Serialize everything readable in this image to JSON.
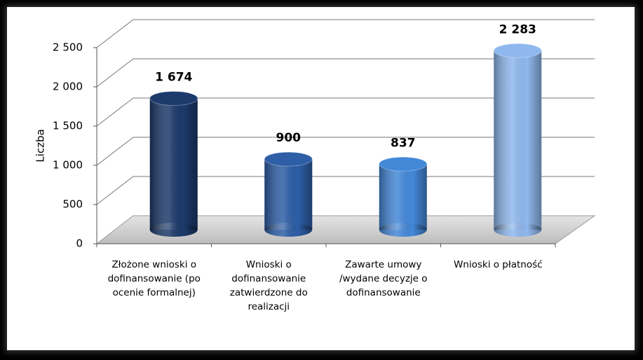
{
  "chart_data": {
    "type": "bar",
    "y_label": "Liczba",
    "categories": [
      "Złożone wnioski o dofinansowanie (po ocenie formalnej)",
      "Wnioski o dofinansowanie zatwierdzone do realizacji",
      "Zawarte umowy /wydane decyzje o dofinansowanie",
      "Wnioski o płatność"
    ],
    "values": [
      1674,
      900,
      837,
      2283
    ],
    "value_labels": [
      "1 674",
      "900",
      "837",
      "2 283"
    ],
    "colors": [
      "#1c3a6b",
      "#2d5ea6",
      "#4488d8",
      "#8fb8ee"
    ],
    "ylim": [
      0,
      2500
    ],
    "yticks": [
      0,
      500,
      {
        "value": 1000,
        "label": "1 000"
      },
      {
        "value": 1500,
        "label": "1 500"
      },
      {
        "value": 2000,
        "label": "2 000"
      },
      {
        "value": 2500,
        "label": "2 500"
      }
    ],
    "grid": true
  }
}
